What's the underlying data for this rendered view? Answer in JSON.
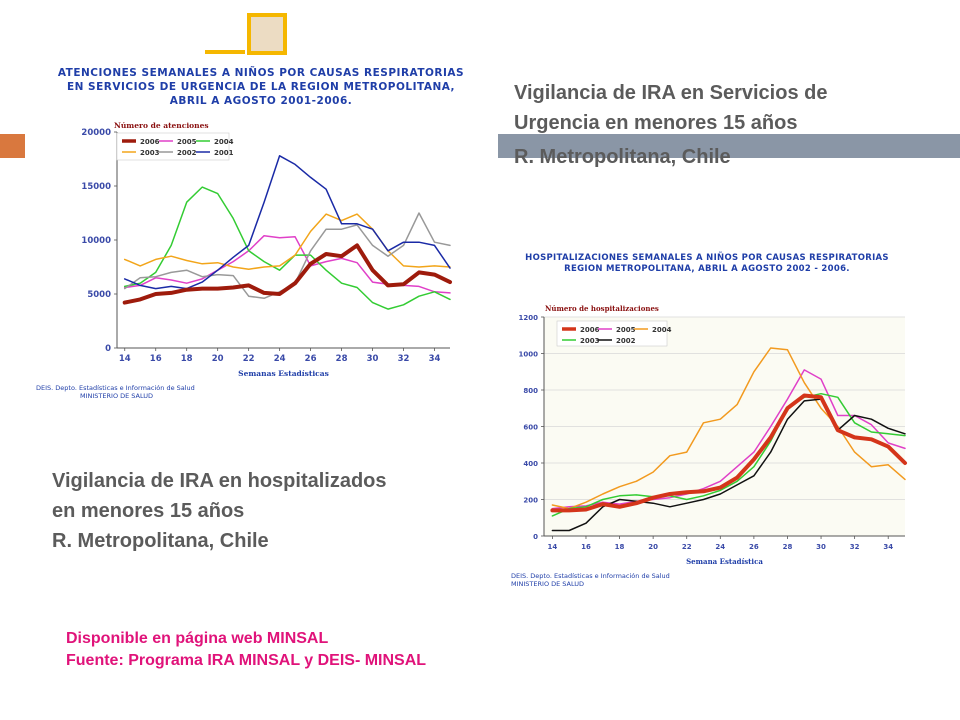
{
  "slide": {
    "title_urgencia": [
      "Vigilancia de IRA en Servicios de",
      "Urgencia  en menores  15 años",
      "R. Metropolitana, Chile"
    ],
    "title_hosp": [
      "Vigilancia de IRA en hospitalizados",
      "en menores  15 años",
      "R. Metropolitana, Chile"
    ],
    "footer": [
      "Disponible en página web MINSAL",
      "Fuente: Programa IRA MINSAL  y DEIS- MINSAL"
    ]
  },
  "colors": {
    "accent_orange": "#d9783e",
    "accent_gray": "#8a96a6",
    "accent_gold": "#f5b700",
    "footer_pink": "#e0137a",
    "title_gray": "#5b5b5b",
    "chart_title_blue": "#1f3ea8"
  },
  "chart_data": [
    {
      "type": "line",
      "title": [
        "ATENCIONES  SEMANALES  A NIÑOS POR CAUSAS RESPIRATORIAS",
        "EN SERVICIOS DE URGENCIA DE LA REGION METROPOLITANA,",
        "ABRIL A AGOSTO 2001-2006."
      ],
      "ylabel": "Número de atenciones",
      "xlabel": "Semanas Estadísticas",
      "source": [
        "DEIS. Depto. Estadísticas e Información de Salud",
        "MINISTERIO DE SALUD"
      ],
      "xlim": [
        13.5,
        35
      ],
      "ylim": [
        0,
        20000
      ],
      "xticks": [
        "14",
        "16",
        "18",
        "20",
        "22",
        "24",
        "26",
        "28",
        "30",
        "32",
        "34"
      ],
      "yticks": [
        "0",
        "5000",
        "10000",
        "15000",
        "20000"
      ],
      "legend_placement": "top-left",
      "grid": false,
      "x": [
        14,
        15,
        16,
        17,
        18,
        19,
        20,
        21,
        22,
        23,
        24,
        25,
        26,
        27,
        28,
        29,
        30,
        31,
        32,
        33,
        34,
        35
      ],
      "series": [
        {
          "name": "2006",
          "color": "#9e1b0c",
          "width": 4,
          "values": [
            4200,
            4500,
            5000,
            5100,
            5400,
            5500,
            5500,
            5600,
            5800,
            5100,
            5000,
            6000,
            7800,
            8700,
            8500,
            9500,
            7200,
            5800,
            5900,
            7000,
            6800,
            6100
          ]
        },
        {
          "name": "2005",
          "color": "#e040c8",
          "width": 1.5,
          "values": [
            5600,
            5800,
            6500,
            6300,
            6000,
            6400,
            7200,
            8000,
            9000,
            10400,
            10200,
            10300,
            7600,
            8000,
            8300,
            7900,
            6100,
            5900,
            5800,
            5700,
            5200,
            5100
          ]
        },
        {
          "name": "2004",
          "color": "#33cc33",
          "width": 1.5,
          "values": [
            5700,
            6000,
            7000,
            9500,
            13500,
            14900,
            14300,
            12000,
            9000,
            8000,
            7200,
            8600,
            8600,
            7200,
            6000,
            5600,
            4200,
            3600,
            4000,
            4800,
            5200,
            4500
          ]
        },
        {
          "name": "2003",
          "color": "#f2a51a",
          "width": 1.5,
          "values": [
            8200,
            7600,
            8200,
            8500,
            8100,
            7800,
            7900,
            7500,
            7300,
            7500,
            7600,
            8600,
            10800,
            12400,
            11800,
            12400,
            11000,
            9000,
            7600,
            7500,
            7600,
            7500
          ]
        },
        {
          "name": "2002",
          "color": "#999999",
          "width": 1.5,
          "values": [
            5500,
            6500,
            6600,
            7000,
            7200,
            6600,
            6800,
            6700,
            4800,
            4600,
            5200,
            6000,
            9000,
            11000,
            11000,
            11400,
            9500,
            8500,
            9500,
            12500,
            9800,
            9500
          ]
        },
        {
          "name": "2001",
          "color": "#1a2aa6",
          "width": 1.5,
          "values": [
            6400,
            5800,
            5500,
            5700,
            5500,
            6100,
            7200,
            8400,
            9500,
            13500,
            17800,
            17000,
            15800,
            14700,
            11500,
            11500,
            11000,
            9000,
            9800,
            9800,
            9500,
            7400
          ]
        }
      ]
    },
    {
      "type": "line",
      "title": [
        "HOSPITALIZACIONES  SEMANALES  A NIÑOS POR CAUSAS RESPIRATORIAS",
        "REGION METROPOLITANA, ABRIL A AGOSTO 2002  -  2006."
      ],
      "ylabel": "Número de hospitalizaciones",
      "xlabel": "Semana Estadística",
      "source": [
        "DEIS.  Depto. Estadísticas e Información de Salud",
        "MINISTERIO DE SALUD"
      ],
      "xlim": [
        13.5,
        35
      ],
      "ylim": [
        0,
        1200
      ],
      "xticks": [
        "14",
        "16",
        "18",
        "20",
        "22",
        "24",
        "26",
        "28",
        "30",
        "32",
        "34"
      ],
      "yticks": [
        "0",
        "200",
        "400",
        "600",
        "800",
        "1000",
        "1200"
      ],
      "legend_placement": "top-left",
      "grid": true,
      "x": [
        14,
        15,
        16,
        17,
        18,
        19,
        20,
        21,
        22,
        23,
        24,
        25,
        26,
        27,
        28,
        29,
        30,
        31,
        32,
        33,
        34,
        35
      ],
      "series": [
        {
          "name": "2006",
          "color": "#d4351a",
          "width": 4,
          "values": [
            140,
            140,
            145,
            175,
            160,
            180,
            210,
            230,
            240,
            245,
            265,
            320,
            420,
            540,
            700,
            770,
            760,
            580,
            540,
            530,
            490,
            400
          ]
        },
        {
          "name": "2005",
          "color": "#e040c8",
          "width": 1.5,
          "values": [
            150,
            160,
            165,
            185,
            175,
            190,
            200,
            210,
            230,
            260,
            300,
            380,
            460,
            600,
            750,
            910,
            860,
            660,
            660,
            610,
            510,
            480
          ]
        },
        {
          "name": "2004",
          "color": "#f29a1f",
          "width": 1.5,
          "values": [
            170,
            150,
            185,
            230,
            270,
            300,
            350,
            440,
            460,
            620,
            640,
            720,
            900,
            1030,
            1020,
            840,
            700,
            600,
            460,
            380,
            390,
            310
          ]
        },
        {
          "name": "2003",
          "color": "#33cc33",
          "width": 1.5,
          "values": [
            110,
            150,
            160,
            200,
            220,
            225,
            215,
            220,
            200,
            220,
            250,
            300,
            380,
            520,
            700,
            760,
            780,
            760,
            620,
            570,
            560,
            550
          ]
        },
        {
          "name": "2002",
          "color": "#111111",
          "width": 1.5,
          "values": [
            30,
            30,
            70,
            160,
            200,
            190,
            180,
            160,
            180,
            200,
            230,
            280,
            330,
            460,
            640,
            740,
            750,
            580,
            660,
            640,
            590,
            560
          ]
        }
      ]
    }
  ]
}
